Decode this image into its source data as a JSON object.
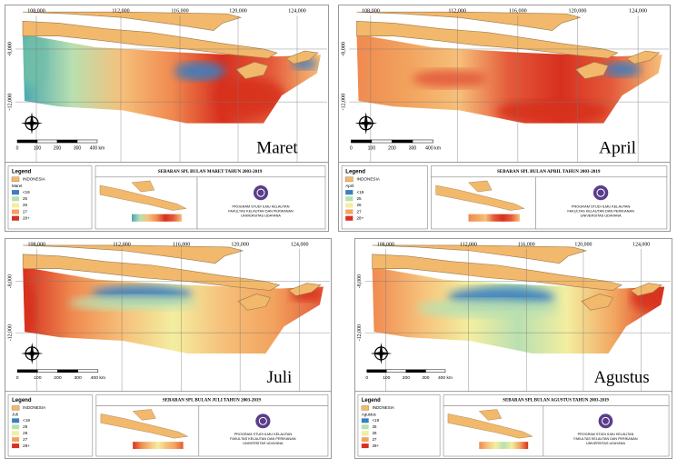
{
  "common": {
    "x_labels": [
      "108,000",
      "112,000",
      "116,000",
      "120,000",
      "124,000"
    ],
    "y_labels": [
      "-8,000",
      "-12,000"
    ],
    "scale_labels": [
      "0",
      "100",
      "200",
      "300",
      "400 km"
    ],
    "legend_title": "Legend",
    "land_label": "INDONESIA",
    "legend_items": [
      {
        "label": "<19",
        "color": "#3b7fc0"
      },
      {
        "label": "25",
        "color": "#b9e0b0"
      },
      {
        "label": "26",
        "color": "#f3eea0"
      },
      {
        "label": "27",
        "color": "#f2a35e"
      },
      {
        "label": "28+",
        "color": "#d7301f"
      }
    ],
    "institution": [
      "PROGRAM STUDI ILMU KELAUTAN",
      "FAKULTAS KELAUTAN DAN PERIKANAN",
      "UNIVERSITAS UDAYANA"
    ]
  },
  "panels": [
    {
      "month": "Maret",
      "title": "SEBARAN SPL BULAN MARET TAHUN 2003-2019"
    },
    {
      "month": "April",
      "title": "SEBARAN SPL BULAN APRIL TAHUN 2003-2019"
    },
    {
      "month": "Juli",
      "title": "SEBARAN SPL BULAN JULI TAHUN 2003-2019"
    },
    {
      "month": "Agustus",
      "title": "SEBARAN SPL BULAN AGUSTUS TAHUN 2003-2019"
    }
  ]
}
